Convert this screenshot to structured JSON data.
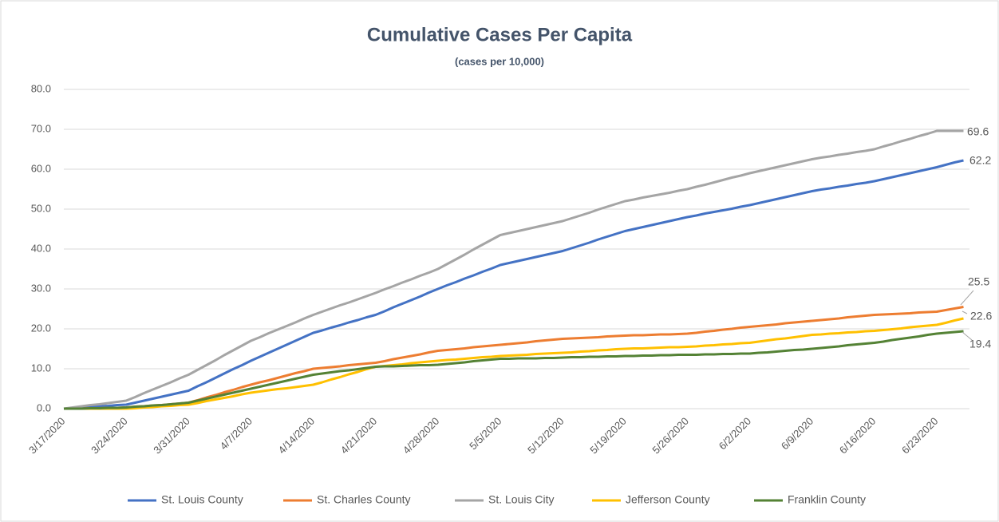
{
  "chart_data": {
    "type": "line",
    "title": "Cumulative Cases Per Capita",
    "subtitle": "(cases per 10,000)",
    "categories": [
      "3/17/2020",
      null,
      null,
      null,
      null,
      null,
      null,
      "3/24/2020",
      null,
      null,
      null,
      null,
      null,
      null,
      "3/31/2020",
      null,
      null,
      null,
      null,
      null,
      null,
      "4/7/2020",
      null,
      null,
      null,
      null,
      null,
      null,
      "4/14/2020",
      null,
      null,
      null,
      null,
      null,
      null,
      "4/21/2020",
      null,
      null,
      null,
      null,
      null,
      null,
      "4/28/2020",
      null,
      null,
      null,
      null,
      null,
      null,
      "5/5/2020",
      null,
      null,
      null,
      null,
      null,
      null,
      "5/12/2020",
      null,
      null,
      null,
      null,
      null,
      null,
      "5/19/2020",
      null,
      null,
      null,
      null,
      null,
      null,
      "5/26/2020",
      null,
      null,
      null,
      null,
      null,
      null,
      "6/2/2020",
      null,
      null,
      null,
      null,
      null,
      null,
      "6/9/2020",
      null,
      null,
      null,
      null,
      null,
      null,
      "6/16/2020",
      null,
      null,
      null,
      null,
      null,
      null,
      "6/23/2020",
      null,
      null,
      null
    ],
    "ylim": [
      0,
      80
    ],
    "yticks": [
      {
        "value": 0,
        "label": "0.0"
      },
      {
        "value": 10,
        "label": "10.0"
      },
      {
        "value": 20,
        "label": "20.0"
      },
      {
        "value": 30,
        "label": "30.0"
      },
      {
        "value": 40,
        "label": "40.0"
      },
      {
        "value": 50,
        "label": "50.0"
      },
      {
        "value": 60,
        "label": "60.0"
      },
      {
        "value": 70,
        "label": "70.0"
      },
      {
        "value": 80,
        "label": "80.0"
      }
    ],
    "grid": true,
    "legend": "bottom",
    "series": [
      {
        "name": "St. Louis County",
        "color": "#4472c4",
        "values": [
          0,
          0.1,
          0.3,
          0.4,
          0.6,
          0.7,
          0.9,
          1.0,
          1.5,
          2.0,
          2.5,
          3.0,
          3.5,
          4.0,
          4.5,
          5.6,
          6.6,
          7.7,
          8.8,
          9.9,
          10.9,
          12.0,
          13,
          14,
          15,
          16,
          17,
          18,
          19,
          19.6,
          20.3,
          20.9,
          21.6,
          22.2,
          22.9,
          23.5,
          24.4,
          25.4,
          26.3,
          27.2,
          28.1,
          29.1,
          30.0,
          30.9,
          31.7,
          32.6,
          33.4,
          34.3,
          35.1,
          36.0,
          36.5,
          37.0,
          37.5,
          38.0,
          38.5,
          39.0,
          39.5,
          40.2,
          40.9,
          41.6,
          42.4,
          43.1,
          43.8,
          44.5,
          45,
          45.5,
          46,
          46.5,
          47,
          47.5,
          48,
          48.4,
          48.9,
          49.3,
          49.7,
          50.1,
          50.6,
          51.0,
          51.5,
          52,
          52.5,
          53,
          53.5,
          54,
          54.5,
          54.9,
          55.2,
          55.6,
          55.9,
          56.3,
          56.6,
          57.0,
          57.5,
          58,
          58.5,
          59,
          59.5,
          60,
          60.5,
          61.1,
          61.7,
          62.2
        ]
      },
      {
        "name": "St. Charles County",
        "color": "#ed7d31",
        "values": [
          0,
          0,
          0,
          0.1,
          0.1,
          0.2,
          0.2,
          0.3,
          0.5,
          0.6,
          0.8,
          0.9,
          1.1,
          1.3,
          1.5,
          2.1,
          2.8,
          3.4,
          4.1,
          4.7,
          5.4,
          6.0,
          6.6,
          7.1,
          7.7,
          8.3,
          8.9,
          9.4,
          10.0,
          10.2,
          10.4,
          10.6,
          10.9,
          11.1,
          11.3,
          11.5,
          11.9,
          12.4,
          12.8,
          13.2,
          13.6,
          14.1,
          14.5,
          14.7,
          14.9,
          15.1,
          15.4,
          15.6,
          15.8,
          16.0,
          16.2,
          16.4,
          16.6,
          16.9,
          17.1,
          17.3,
          17.5,
          17.6,
          17.7,
          17.8,
          17.9,
          18.1,
          18.2,
          18.3,
          18.4,
          18.4,
          18.5,
          18.6,
          18.6,
          18.7,
          18.8,
          19.0,
          19.3,
          19.5,
          19.8,
          20.0,
          20.3,
          20.5,
          20.7,
          20.9,
          21.1,
          21.4,
          21.6,
          21.8,
          22.0,
          22.2,
          22.4,
          22.6,
          22.9,
          23.1,
          23.3,
          23.5,
          23.6,
          23.7,
          23.8,
          23.9,
          24.1,
          24.2,
          24.3,
          24.7,
          25.1,
          25.5
        ]
      },
      {
        "name": "St. Louis City",
        "color": "#a5a5a5",
        "values": [
          0,
          0.3,
          0.6,
          0.9,
          1.1,
          1.4,
          1.7,
          2.0,
          2.9,
          3.9,
          4.8,
          5.7,
          6.6,
          7.6,
          8.5,
          9.7,
          10.9,
          12.1,
          13.4,
          14.6,
          15.8,
          17.0,
          17.9,
          18.9,
          19.8,
          20.7,
          21.6,
          22.6,
          23.5,
          24.3,
          25.1,
          25.9,
          26.6,
          27.4,
          28.2,
          29.0,
          29.9,
          30.7,
          31.6,
          32.4,
          33.3,
          34.1,
          35.0,
          36.2,
          37.4,
          38.6,
          39.9,
          41.1,
          42.3,
          43.5,
          44.0,
          44.5,
          45.0,
          45.5,
          46.0,
          46.5,
          47.0,
          47.7,
          48.4,
          49.1,
          49.9,
          50.6,
          51.3,
          52.0,
          52.4,
          52.9,
          53.3,
          53.7,
          54.1,
          54.6,
          55.0,
          55.6,
          56.1,
          56.7,
          57.3,
          57.9,
          58.4,
          59.0,
          59.5,
          60.0,
          60.5,
          61.0,
          61.5,
          62.0,
          62.5,
          62.9,
          63.2,
          63.6,
          63.9,
          64.3,
          64.6,
          65.0,
          65.7,
          66.3,
          67.0,
          67.6,
          68.3,
          68.9,
          69.6,
          69.6,
          69.6,
          69.6
        ]
      },
      {
        "name": "Jefferson County",
        "color": "#ffc000",
        "values": [
          0,
          0,
          0,
          0,
          0,
          0,
          0,
          0,
          0.1,
          0.3,
          0.4,
          0.6,
          0.7,
          0.9,
          1.0,
          1.4,
          1.9,
          2.3,
          2.7,
          3.1,
          3.6,
          4.0,
          4.3,
          4.6,
          4.9,
          5.1,
          5.4,
          5.7,
          6.0,
          6.6,
          7.3,
          7.9,
          8.6,
          9.2,
          9.9,
          10.5,
          10.7,
          10.9,
          11.1,
          11.4,
          11.6,
          11.8,
          12.0,
          12.2,
          12.3,
          12.5,
          12.7,
          12.9,
          13.0,
          13.2,
          13.3,
          13.4,
          13.5,
          13.7,
          13.8,
          13.9,
          14.0,
          14.1,
          14.3,
          14.4,
          14.6,
          14.7,
          14.9,
          15.0,
          15.1,
          15.1,
          15.2,
          15.3,
          15.4,
          15.4,
          15.5,
          15.6,
          15.8,
          15.9,
          16.1,
          16.2,
          16.4,
          16.5,
          16.8,
          17.1,
          17.4,
          17.6,
          17.9,
          18.2,
          18.5,
          18.6,
          18.8,
          18.9,
          19.1,
          19.2,
          19.4,
          19.5,
          19.7,
          19.9,
          20.1,
          20.4,
          20.6,
          20.8,
          21.0,
          21.5,
          22.1,
          22.6
        ]
      },
      {
        "name": "Franklin County",
        "color": "#548235",
        "values": [
          0,
          0,
          0,
          0.1,
          0.1,
          0.2,
          0.2,
          0.3,
          0.5,
          0.6,
          0.8,
          0.9,
          1.1,
          1.3,
          1.5,
          2.0,
          2.5,
          3.0,
          3.5,
          4.0,
          4.5,
          5.0,
          5.5,
          6.0,
          6.5,
          7.0,
          7.5,
          8.0,
          8.5,
          8.8,
          9.1,
          9.4,
          9.6,
          9.9,
          10.2,
          10.5,
          10.6,
          10.6,
          10.7,
          10.8,
          10.9,
          10.9,
          11.0,
          11.2,
          11.4,
          11.6,
          11.9,
          12.1,
          12.3,
          12.5,
          12.5,
          12.6,
          12.6,
          12.6,
          12.7,
          12.7,
          12.8,
          12.9,
          12.9,
          13.0,
          13.0,
          13.1,
          13.1,
          13.2,
          13.2,
          13.3,
          13.3,
          13.4,
          13.4,
          13.5,
          13.5,
          13.5,
          13.6,
          13.6,
          13.7,
          13.7,
          13.8,
          13.8,
          14.0,
          14.1,
          14.3,
          14.5,
          14.7,
          14.8,
          15.0,
          15.2,
          15.4,
          15.6,
          15.9,
          16.1,
          16.3,
          16.5,
          16.8,
          17.2,
          17.5,
          17.8,
          18.1,
          18.5,
          18.8,
          19.0,
          19.2,
          19.4
        ]
      }
    ]
  }
}
